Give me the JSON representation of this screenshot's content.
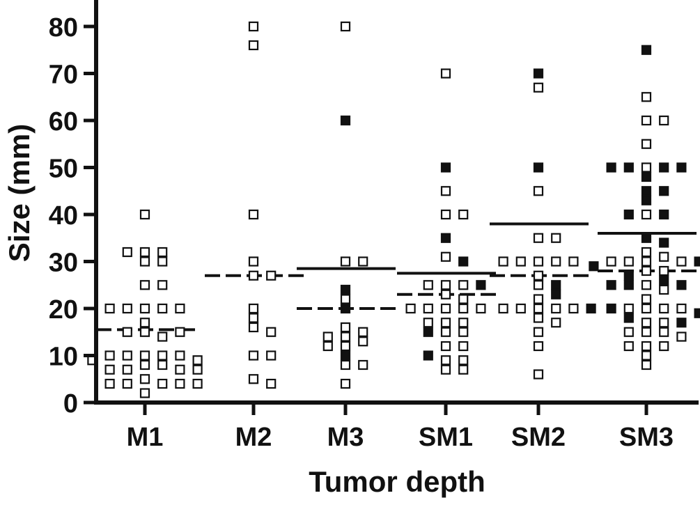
{
  "chart_data": {
    "type": "scatter",
    "xlabel": "Tumor depth",
    "ylabel": "Size (mm)",
    "ylim": [
      0,
      85
    ],
    "yticks": [
      0,
      10,
      20,
      30,
      40,
      50,
      60,
      70,
      80
    ],
    "categories": [
      "M1",
      "M2",
      "M3",
      "SM1",
      "SM2",
      "SM3"
    ],
    "colors": {
      "axis": "#111111",
      "marker": "#111111",
      "background": "#ffffff"
    },
    "series": [
      {
        "marker": "open-square",
        "points": [
          {
            "category": "M1",
            "values": [
              40,
              32,
              32,
              32,
              30,
              30,
              25,
              25,
              20,
              20,
              20,
              20,
              20,
              17,
              15,
              14,
              15,
              15,
              10,
              10,
              10,
              10,
              10,
              9,
              9,
              8,
              8,
              7,
              7,
              7,
              7,
              5,
              4,
              4,
              4,
              4,
              4,
              2
            ]
          },
          {
            "category": "M2",
            "values": [
              80,
              76,
              40,
              30,
              27,
              27,
              20,
              18,
              16,
              15,
              10,
              10,
              5,
              4
            ]
          },
          {
            "category": "M3",
            "values": [
              80,
              30,
              30,
              22,
              16,
              15,
              14,
              14,
              13,
              12,
              12,
              8,
              8,
              4
            ]
          },
          {
            "category": "SM1",
            "values": [
              70,
              45,
              40,
              40,
              31,
              25,
              25,
              25,
              23,
              22,
              20,
              20,
              20,
              20,
              20,
              17,
              17,
              17,
              15,
              15,
              12,
              12,
              9,
              9,
              7,
              7
            ]
          },
          {
            "category": "SM2",
            "values": [
              67,
              45,
              35,
              35,
              30,
              30,
              30,
              30,
              30,
              27,
              25,
              22,
              20,
              20,
              20,
              20,
              20,
              18,
              17,
              15,
              12,
              6
            ]
          },
          {
            "category": "SM3",
            "values": [
              65,
              60,
              60,
              55,
              50,
              40,
              32,
              31,
              30,
              30,
              30,
              30,
              28,
              28,
              25,
              24,
              22,
              20,
              20,
              20,
              20,
              17,
              17,
              15,
              15,
              15,
              14,
              12,
              12,
              12,
              10,
              8
            ]
          }
        ]
      },
      {
        "marker": "filled-square",
        "points": [
          {
            "category": "M1",
            "values": []
          },
          {
            "category": "M2",
            "values": []
          },
          {
            "category": "M3",
            "values": [
              60,
              24,
              20,
              10
            ]
          },
          {
            "category": "SM1",
            "values": [
              50,
              35,
              30,
              25,
              15,
              10
            ]
          },
          {
            "category": "SM2",
            "values": [
              70,
              50,
              25,
              23,
              20
            ]
          },
          {
            "category": "SM3",
            "values": [
              75,
              50,
              50,
              50,
              50,
              48,
              45,
              45,
              43,
              40,
              40,
              35,
              34,
              30,
              29,
              27,
              26,
              25,
              25,
              25,
              20,
              19,
              18,
              17
            ]
          }
        ]
      }
    ],
    "lines": [
      {
        "style": "solid",
        "values": {
          "M3": 28.5,
          "SM1": 27.5,
          "SM2": 38,
          "SM3": 36
        }
      },
      {
        "style": "dashed",
        "values": {
          "M1": 15.5,
          "M2": 27,
          "M3": 20,
          "SM1": 23,
          "SM2": 27,
          "SM3": 28
        }
      }
    ]
  }
}
